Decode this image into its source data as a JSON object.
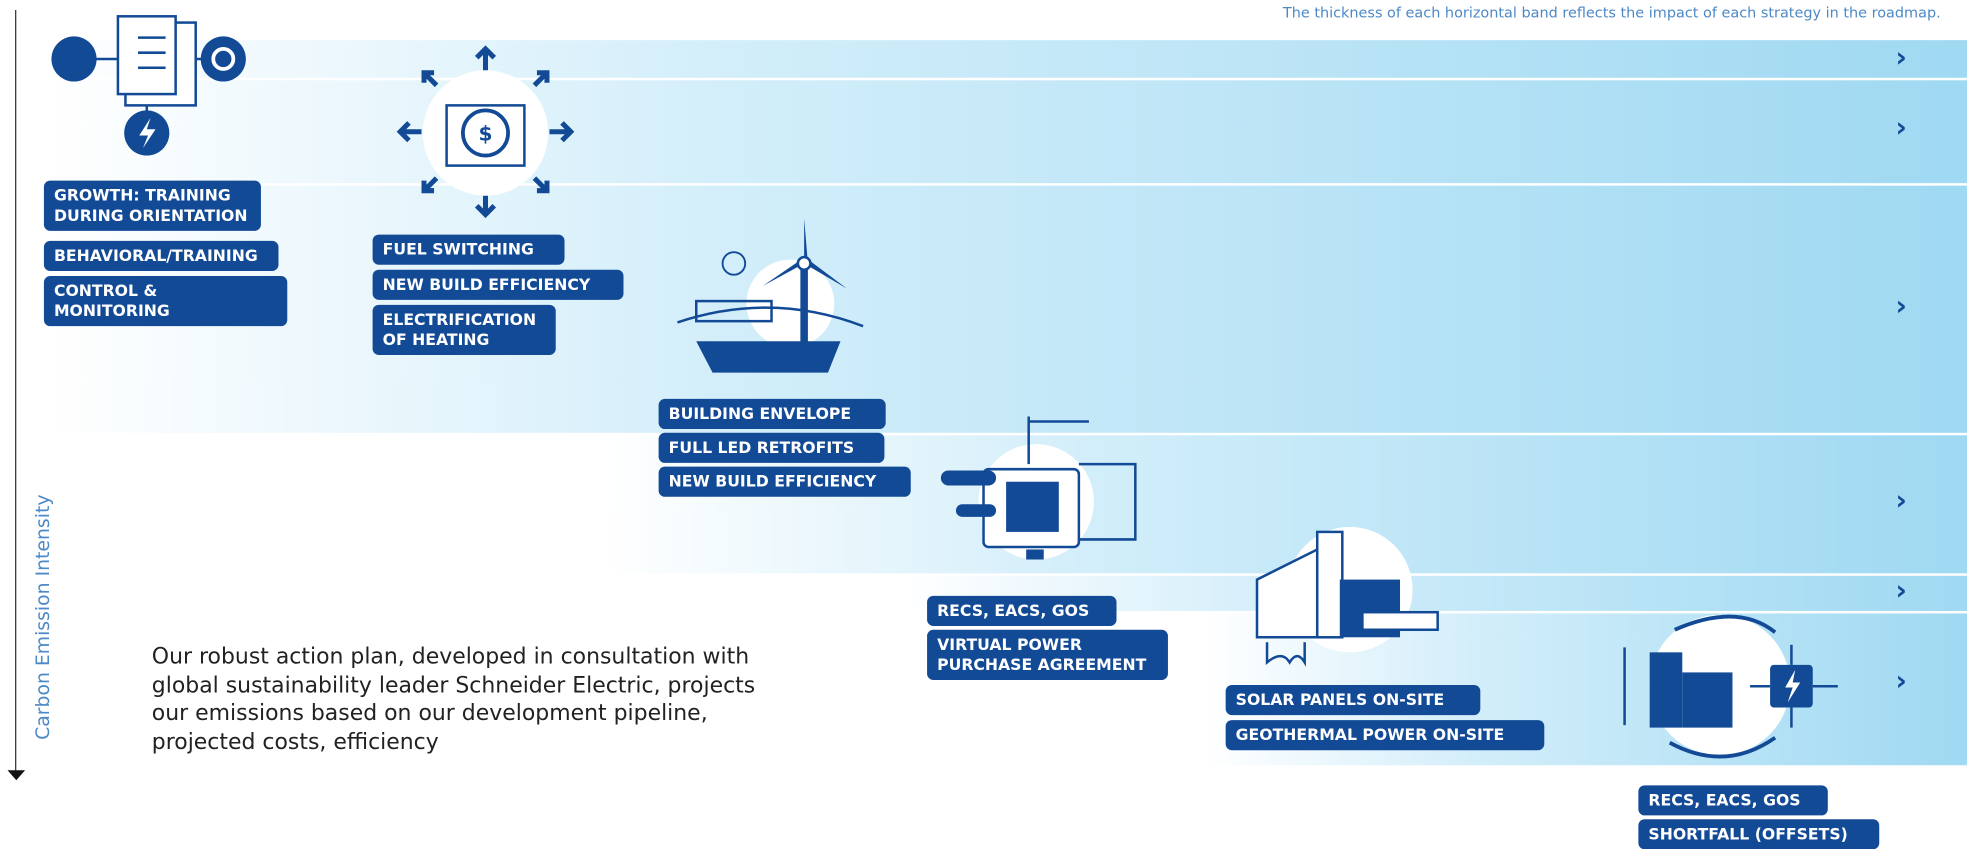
{
  "header": {
    "note": "The thickness of each horizontal band reflects the impact of each strategy in the roadmap."
  },
  "axis": {
    "label": "Carbon Emission Intensity"
  },
  "description": "Our robust action plan, developed in consultation with global sustainability leader Schneider Electric, projects our emissions based on our development pipeline, projected costs, efficiency",
  "groups": [
    {
      "labels": [
        "GROWTH: TRAINING DURING ORIENTATION",
        "BEHAVIORAL/TRAINING",
        "CONTROL & MONITORING"
      ]
    },
    {
      "labels": [
        "FUEL SWITCHING",
        "NEW BUILD EFFICIENCY",
        "ELECTRIFICATION OF HEATING"
      ]
    },
    {
      "labels": [
        "BUILDING ENVELOPE",
        "FULL LED RETROFITS",
        "NEW BUILD EFFICIENCY"
      ]
    },
    {
      "labels": [
        "RECS, EACS, GOS",
        "VIRTUAL POWER PURCHASE AGREEMENT"
      ]
    },
    {
      "labels": [
        "SOLAR PANELS ON-SITE",
        "GEOTHERMAL POWER ON-SITE"
      ]
    },
    {
      "labels": [
        "RECS, EACS, GOS",
        "SHORTFALL (OFFSETS)"
      ]
    }
  ]
}
